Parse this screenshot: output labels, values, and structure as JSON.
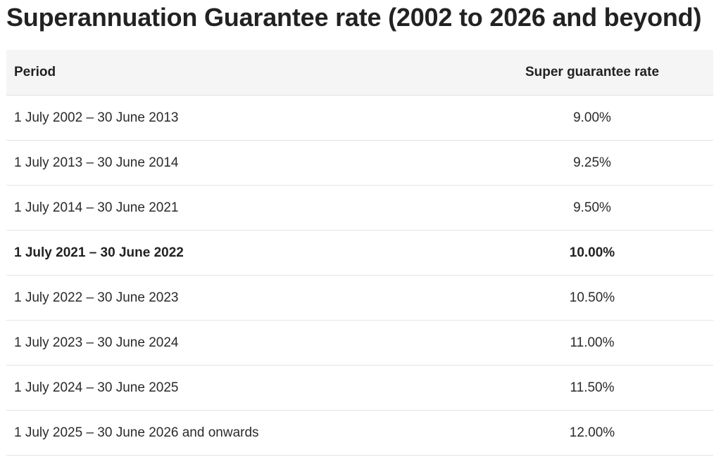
{
  "title": "Superannuation Guarantee rate (2002 to 2026 and beyond)",
  "table": {
    "headers": {
      "period": "Period",
      "rate": "Super guarantee rate"
    },
    "rows": [
      {
        "period": "1 July 2002 – 30 June 2013",
        "rate": "9.00%",
        "bold": false
      },
      {
        "period": "1 July 2013 – 30 June 2014",
        "rate": "9.25%",
        "bold": false
      },
      {
        "period": "1 July 2014 – 30 June 2021",
        "rate": "9.50%",
        "bold": false
      },
      {
        "period": "1 July 2021 – 30 June 2022",
        "rate": "10.00%",
        "bold": true
      },
      {
        "period": "1 July 2022 – 30 June 2023",
        "rate": "10.50%",
        "bold": false
      },
      {
        "period": "1 July 2023 – 30 June 2024",
        "rate": "11.00%",
        "bold": false
      },
      {
        "period": "1 July 2024 – 30 June 2025",
        "rate": "11.50%",
        "bold": false
      },
      {
        "period": "1 July 2025 – 30 June 2026 and onwards",
        "rate": "12.00%",
        "bold": false
      }
    ]
  }
}
